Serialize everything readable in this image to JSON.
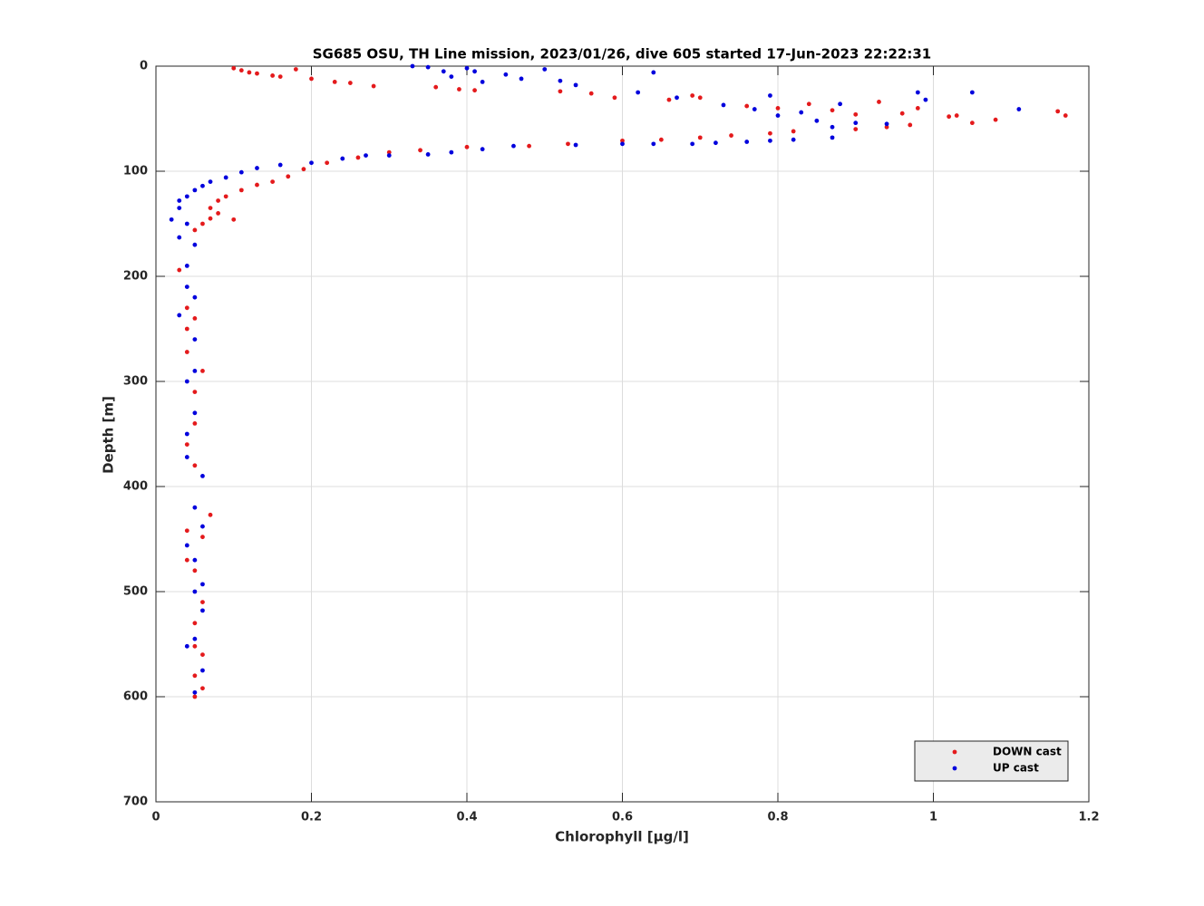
{
  "chart_data": {
    "type": "scatter",
    "title": "SG685 OSU, TH Line mission, 2023/01/26, dive 605 started 17-Jun-2023 22:22:31",
    "xlabel": "Chlorophyll [μg/l]",
    "ylabel": "Depth [m]",
    "xlim": [
      0,
      1.2
    ],
    "xticks": [
      0,
      0.2,
      0.4,
      0.6,
      0.8,
      1,
      1.2
    ],
    "ylim": [
      0,
      700
    ],
    "yticks": [
      0,
      100,
      200,
      300,
      400,
      500,
      600,
      700
    ],
    "y_reversed": true,
    "grid": true,
    "legend": "lower right",
    "series": [
      {
        "name": "DOWN cast",
        "color": "#e41a1c",
        "x": [
          0.1,
          0.11,
          0.12,
          0.13,
          0.15,
          0.16,
          0.18,
          0.2,
          0.23,
          0.25,
          0.28,
          0.36,
          0.39,
          0.41,
          0.52,
          0.56,
          0.59,
          0.66,
          0.69,
          0.7,
          0.76,
          0.8,
          0.84,
          0.87,
          0.9,
          0.93,
          0.96,
          0.98,
          1.02,
          1.03,
          1.05,
          1.08,
          1.16,
          1.17,
          0.97,
          0.94,
          0.9,
          0.82,
          0.79,
          0.74,
          0.7,
          0.65,
          0.6,
          0.53,
          0.48,
          0.4,
          0.34,
          0.3,
          0.26,
          0.22,
          0.19,
          0.17,
          0.15,
          0.13,
          0.11,
          0.09,
          0.08,
          0.07,
          0.07,
          0.06,
          0.08,
          0.1,
          0.05,
          0.03,
          0.04,
          0.04,
          0.05,
          0.04,
          0.06,
          0.05,
          0.04,
          0.05,
          0.05,
          0.07,
          0.04,
          0.06,
          0.04,
          0.05,
          0.06,
          0.05,
          0.05,
          0.06,
          0.05,
          0.06,
          0.05
        ],
        "values": [
          2,
          4,
          6,
          7,
          9,
          10,
          3,
          12,
          15,
          16,
          19,
          20,
          22,
          23,
          24,
          26,
          30,
          32,
          28,
          30,
          38,
          40,
          36,
          42,
          46,
          34,
          45,
          40,
          48,
          47,
          54,
          51,
          43,
          47,
          56,
          58,
          60,
          62,
          64,
          66,
          68,
          70,
          71,
          74,
          76,
          77,
          80,
          82,
          87,
          92,
          98,
          105,
          110,
          113,
          118,
          124,
          128,
          135,
          145,
          150,
          140,
          146,
          156,
          194,
          230,
          250,
          240,
          272,
          290,
          310,
          360,
          340,
          380,
          427,
          442,
          448,
          470,
          480,
          510,
          530,
          552,
          560,
          580,
          592,
          600
        ]
      },
      {
        "name": "UP cast",
        "color": "#0000dd",
        "x": [
          0.33,
          0.35,
          0.37,
          0.38,
          0.4,
          0.41,
          0.42,
          0.45,
          0.47,
          0.5,
          0.52,
          0.54,
          0.64,
          0.62,
          0.67,
          0.73,
          0.77,
          0.79,
          0.8,
          0.83,
          0.85,
          0.87,
          0.88,
          0.9,
          0.94,
          0.98,
          0.99,
          1.05,
          1.11,
          0.87,
          0.82,
          0.79,
          0.76,
          0.72,
          0.69,
          0.64,
          0.6,
          0.54,
          0.46,
          0.42,
          0.38,
          0.35,
          0.3,
          0.27,
          0.24,
          0.2,
          0.16,
          0.13,
          0.11,
          0.09,
          0.07,
          0.06,
          0.05,
          0.04,
          0.03,
          0.03,
          0.02,
          0.04,
          0.03,
          0.05,
          0.04,
          0.04,
          0.05,
          0.03,
          0.05,
          0.05,
          0.04,
          0.05,
          0.04,
          0.04,
          0.06,
          0.05,
          0.06,
          0.04,
          0.05,
          0.06,
          0.05,
          0.06,
          0.04,
          0.05,
          0.06,
          0.05
        ],
        "values": [
          0,
          1,
          5,
          10,
          2,
          5,
          15,
          8,
          12,
          3,
          14,
          18,
          6,
          25,
          30,
          37,
          41,
          28,
          47,
          44,
          52,
          58,
          36,
          54,
          55,
          25,
          32,
          25,
          41,
          68,
          70,
          71,
          72,
          73,
          74,
          74,
          74,
          75,
          76,
          79,
          82,
          84,
          85,
          85,
          88,
          92,
          94,
          97,
          101,
          106,
          110,
          114,
          118,
          124,
          128,
          135,
          146,
          150,
          163,
          170,
          190,
          210,
          220,
          237,
          260,
          290,
          300,
          330,
          350,
          372,
          390,
          420,
          438,
          456,
          470,
          493,
          500,
          518,
          552,
          545,
          575,
          596
        ]
      }
    ]
  }
}
